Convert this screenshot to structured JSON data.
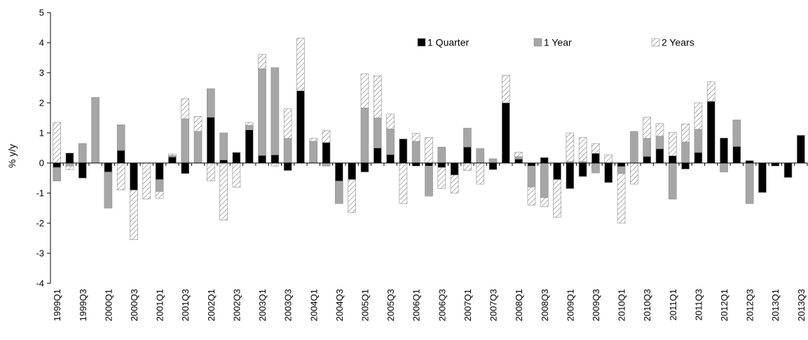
{
  "chart_data": {
    "type": "bar",
    "stacked": true,
    "ylabel": "% y/y",
    "ylim": [
      -4,
      5
    ],
    "yticks": [
      -4,
      -3,
      -2,
      -1,
      0,
      1,
      2,
      3,
      4,
      5
    ],
    "grid": false,
    "legend_position": "top-right",
    "categories": [
      "1999Q1",
      "1999Q2",
      "1999Q3",
      "1999Q4",
      "2000Q1",
      "2000Q2",
      "2000Q3",
      "2000Q4",
      "2001Q1",
      "2001Q2",
      "2001Q3",
      "2001Q4",
      "2002Q1",
      "2002Q2",
      "2002Q3",
      "2002Q4",
      "2003Q1",
      "2003Q2",
      "2003Q3",
      "2003Q4",
      "2004Q1",
      "2004Q2",
      "2004Q3",
      "2004Q4",
      "2005Q1",
      "2005Q2",
      "2005Q3",
      "2005Q4",
      "2006Q1",
      "2006Q2",
      "2006Q3",
      "2006Q4",
      "2007Q1",
      "2007Q2",
      "2007Q3",
      "2007Q4",
      "2008Q1",
      "2008Q2",
      "2008Q3",
      "2008Q4",
      "2009Q1",
      "2009Q2",
      "2009Q3",
      "2009Q4",
      "2010Q1",
      "2010Q2",
      "2010Q3",
      "2010Q4",
      "2011Q1",
      "2011Q2",
      "2011Q3",
      "2011Q4",
      "2012Q1",
      "2012Q2",
      "2012Q3",
      "2012Q4",
      "2013Q1",
      "2013Q2",
      "2013Q3"
    ],
    "tick_labels": [
      "1999Q1",
      "1999Q3",
      "2000Q1",
      "2000Q3",
      "2001Q1",
      "2001Q3",
      "2002Q1",
      "2002Q3",
      "2003Q1",
      "2003Q3",
      "2004Q1",
      "2004Q3",
      "2005Q1",
      "2005Q3",
      "2006Q1",
      "2006Q3",
      "2007Q1",
      "2007Q3",
      "2008Q1",
      "2008Q3",
      "2009Q1",
      "2009Q3",
      "2010Q1",
      "2010Q3",
      "2011Q1",
      "2011Q3",
      "2012Q1",
      "2012Q3",
      "2013Q1",
      "2013Q3"
    ],
    "series": [
      {
        "name": "1 Quarter",
        "color": "#000000",
        "pattern": "solid",
        "values": [
          -0.15,
          0.33,
          -0.5,
          0,
          -0.3,
          0.42,
          -0.9,
          0,
          -0.55,
          0.2,
          -0.35,
          0,
          1.52,
          0.1,
          0.35,
          1.1,
          0.25,
          0.27,
          -0.25,
          2.4,
          0,
          0.68,
          -0.6,
          -0.55,
          -0.3,
          0.5,
          0.28,
          0.8,
          -0.1,
          -0.1,
          -0.15,
          -0.4,
          0.53,
          0,
          -0.22,
          2.0,
          0.13,
          -0.1,
          0.18,
          -0.55,
          -0.85,
          -0.45,
          0.32,
          -0.65,
          -0.12,
          0,
          0.22,
          0.47,
          0.24,
          -0.2,
          0.35,
          2.05,
          0.83,
          0.55,
          0.08,
          -0.98,
          -0.1,
          -0.48,
          0.92
        ]
      },
      {
        "name": "1 Year",
        "color": "#a6a6a6",
        "pattern": "solid",
        "values": [
          -0.45,
          -0.1,
          0.65,
          2.18,
          -1.2,
          0.85,
          0,
          0,
          -0.4,
          0.05,
          1.47,
          1.05,
          0.95,
          0.9,
          0,
          0.15,
          2.88,
          2.9,
          0.82,
          0,
          0.72,
          -0.1,
          -0.75,
          0,
          1.83,
          1.0,
          0.85,
          0,
          0.72,
          -1.0,
          0.53,
          0,
          0.63,
          0.48,
          0.14,
          0,
          0.08,
          -0.7,
          -1.15,
          0,
          0.05,
          0.05,
          -0.33,
          0,
          -0.23,
          1.05,
          0.6,
          0.42,
          -1.2,
          0.7,
          0.77,
          0,
          -0.3,
          0.88,
          -1.35,
          0,
          0,
          0,
          0
        ]
      },
      {
        "name": "2 Years",
        "color": "#ffffff",
        "pattern": "hatch",
        "values": [
          1.35,
          -0.12,
          0,
          0,
          0,
          -0.9,
          -1.65,
          -1.2,
          -0.22,
          0.05,
          0.67,
          0.5,
          -0.6,
          -1.9,
          -0.8,
          0.1,
          0.48,
          -0.1,
          0.98,
          1.75,
          0.1,
          0.4,
          0,
          -1.1,
          1.13,
          1.4,
          0.5,
          -1.35,
          0.27,
          0.85,
          -0.7,
          -0.6,
          -0.25,
          -0.7,
          0,
          0.92,
          0.15,
          -0.6,
          -0.3,
          -1.25,
          0.95,
          0.8,
          0.33,
          0.27,
          -1.65,
          -0.7,
          0.7,
          0.42,
          0.78,
          0.6,
          0.88,
          0.65,
          0,
          0,
          0,
          0,
          0,
          0,
          0
        ]
      }
    ]
  }
}
